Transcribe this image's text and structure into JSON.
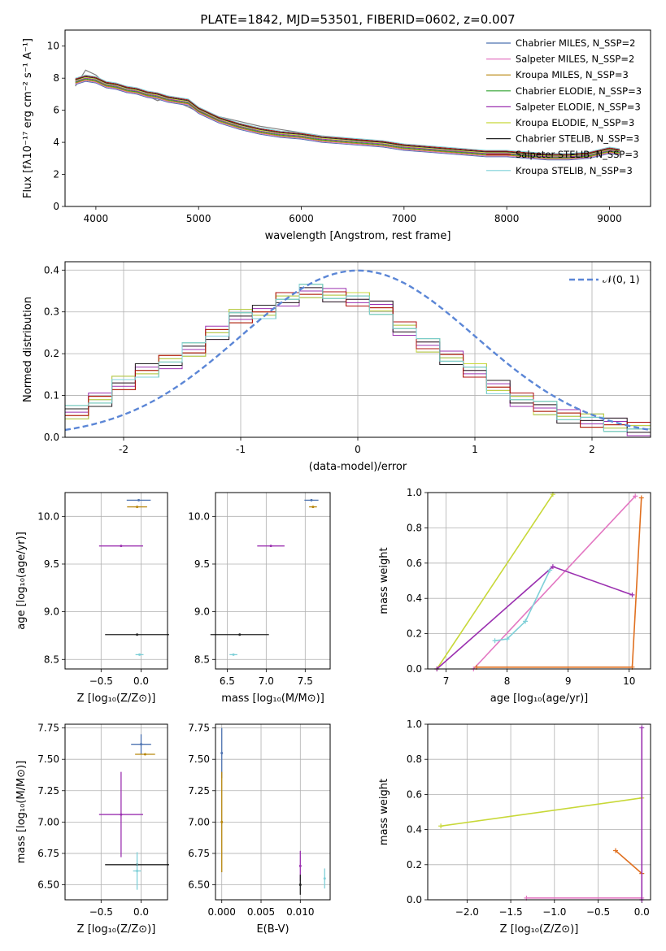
{
  "title": "PLATE=1842, MJD=53501, FIBERID=0602, z=0.007",
  "colors": [
    "#4c72b0",
    "#e377c2",
    "#b8860b",
    "#2ca02c",
    "#9b30b0",
    "#c8d838",
    "#222222",
    "#b01010",
    "#7fd0d8"
  ],
  "chart_data": [
    {
      "type": "line",
      "xlabel": "wavelength [Angstrom, rest frame]",
      "ylabel": "Flux [fλ10⁻¹⁷ erg cm⁻² s⁻¹ A⁻¹]",
      "xlim": [
        3700,
        9400
      ],
      "ylim": [
        0,
        11
      ],
      "xticks": [
        4000,
        5000,
        6000,
        7000,
        8000,
        9000
      ],
      "yticks": [
        0,
        2,
        4,
        6,
        8,
        10
      ],
      "grid": false,
      "legend_position": "top-right",
      "legend": [
        "Chabrier MILES, N_SSP=2",
        "Salpeter MILES, N_SSP=2",
        "Kroupa MILES, N_SSP=3",
        "Chabrier ELODIE, N_SSP=3",
        "Salpeter ELODIE, N_SSP=3",
        "Kroupa ELODIE, N_SSP=3",
        "Chabrier STELIB, N_SSP=3",
        "Salpeter STELIB, N_SSP=3",
        "Kroupa STELIB, N_SSP=3"
      ],
      "data_series": {
        "name": "data",
        "x": [
          3800,
          3900,
          4000,
          4100,
          4200,
          4300,
          4400,
          4500,
          4600,
          4700,
          4800,
          4900,
          5000,
          5200,
          5400,
          5600,
          5800,
          6000,
          6200,
          6400,
          6600,
          6800,
          7000,
          7200,
          7400,
          7600,
          7800,
          8000,
          8200,
          8400,
          8600,
          8800,
          9000,
          9100
        ],
        "y": [
          7.5,
          8.5,
          8.2,
          7.6,
          7.4,
          7.1,
          7.2,
          6.9,
          6.6,
          6.8,
          6.5,
          6.2,
          5.9,
          5.6,
          5.3,
          5.0,
          4.8,
          4.6,
          4.4,
          4.3,
          4.1,
          4.0,
          3.8,
          3.6,
          3.5,
          3.4,
          3.3,
          3.3,
          3.2,
          3.1,
          3.1,
          3.2,
          3.5,
          3.5
        ]
      },
      "model_series": {
        "x": [
          3800,
          3900,
          4000,
          4100,
          4200,
          4300,
          4400,
          4500,
          4600,
          4700,
          4800,
          4900,
          5000,
          5200,
          5400,
          5600,
          5800,
          6000,
          6200,
          6400,
          6600,
          6800,
          7000,
          7200,
          7400,
          7600,
          7800,
          8000,
          8200,
          8400,
          8600,
          8800,
          9000,
          9100
        ],
        "y": [
          7.8,
          8.0,
          7.9,
          7.6,
          7.5,
          7.3,
          7.2,
          7.0,
          6.9,
          6.7,
          6.6,
          6.5,
          6.0,
          5.4,
          5.0,
          4.7,
          4.5,
          4.4,
          4.2,
          4.1,
          4.0,
          3.9,
          3.7,
          3.6,
          3.5,
          3.4,
          3.3,
          3.3,
          3.2,
          3.1,
          3.1,
          3.2,
          3.5,
          3.4
        ]
      }
    },
    {
      "type": "line",
      "xlabel": "(data-model)/error",
      "ylabel": "Normed distribution",
      "xlim": [
        -2.5,
        2.5
      ],
      "ylim": [
        0,
        0.42
      ],
      "xticks": [
        -2,
        -1,
        0,
        1,
        2
      ],
      "yticks": [
        0.0,
        0.1,
        0.2,
        0.3,
        0.4
      ],
      "grid": true,
      "legend_position": "top-right",
      "legend": [
        "𝒩(0, 1)"
      ],
      "histogram_edges": [
        -2.5,
        -2.3,
        -2.1,
        -1.9,
        -1.7,
        -1.5,
        -1.3,
        -1.1,
        -0.9,
        -0.7,
        -0.5,
        -0.3,
        -0.1,
        0.1,
        0.3,
        0.5,
        0.7,
        0.9,
        1.1,
        1.3,
        1.5,
        1.7,
        1.9,
        2.1,
        2.3,
        2.5
      ],
      "histogram_values": [
        0.06,
        0.09,
        0.13,
        0.16,
        0.18,
        0.21,
        0.25,
        0.29,
        0.3,
        0.33,
        0.35,
        0.34,
        0.33,
        0.31,
        0.26,
        0.22,
        0.19,
        0.16,
        0.12,
        0.09,
        0.07,
        0.05,
        0.04,
        0.03,
        0.02
      ]
    },
    {
      "type": "scatter",
      "xlabel": "Z [log₁₀(Z/Z⊙)]",
      "ylabel": "age  [log₁₀(age/yr)]",
      "xlim": [
        -0.95,
        0.33
      ],
      "ylim": [
        8.4,
        10.25
      ],
      "xticks": [
        -0.5,
        0.0
      ],
      "xticklabels": [
        "−0.5",
        "0.0"
      ],
      "yticks": [
        8.5,
        9.0,
        9.5,
        10.0
      ],
      "yticklabels": [
        "8.5",
        "9.0",
        "9.5",
        "10.0"
      ],
      "grid": true,
      "points": [
        {
          "x": -0.03,
          "y": 10.17,
          "xerr": 0.3,
          "yerr": 0.0
        },
        {
          "x": -0.05,
          "y": 10.1,
          "xerr": 0.25,
          "yerr": 0.0
        },
        {
          "x": -0.25,
          "y": 9.69,
          "xerr": 0.55,
          "yerr": 0.0
        },
        {
          "x": -0.05,
          "y": 8.76,
          "xerr": 0.8,
          "yerr": 0.0
        },
        {
          "x": -0.02,
          "y": 8.55,
          "xerr": 0.1,
          "yerr": 0.0
        }
      ]
    },
    {
      "type": "scatter",
      "xlabel": "mass [log₁₀(M/M⊙)]",
      "ylabel": "",
      "xlim": [
        6.35,
        7.82
      ],
      "ylim": [
        8.4,
        10.25
      ],
      "xticks": [
        6.5,
        7.0,
        7.5
      ],
      "xticklabels": [
        "6.5",
        "7.0",
        "7.5"
      ],
      "yticks": [
        8.5,
        9.0,
        9.5,
        10.0
      ],
      "yticklabels": [
        "8.5",
        "9.0",
        "9.5",
        "10.0"
      ],
      "grid": true,
      "points": [
        {
          "x": 7.58,
          "y": 10.17,
          "xerr": 0.18,
          "yerr": 0.0
        },
        {
          "x": 7.6,
          "y": 10.1,
          "xerr": 0.1,
          "yerr": 0.0
        },
        {
          "x": 7.06,
          "y": 9.69,
          "xerr": 0.35,
          "yerr": 0.0
        },
        {
          "x": 6.66,
          "y": 8.76,
          "xerr": 0.75,
          "yerr": 0.0
        },
        {
          "x": 6.58,
          "y": 8.55,
          "xerr": 0.1,
          "yerr": 0.0
        }
      ]
    },
    {
      "type": "line",
      "xlabel": "age  [log₁₀(age/yr)]",
      "ylabel": "mass weight",
      "xlim": [
        6.7,
        10.35
      ],
      "ylim": [
        0,
        1
      ],
      "xticks": [
        7,
        8,
        9,
        10
      ],
      "xticklabels": [
        "7",
        "8",
        "9",
        "10"
      ],
      "yticks": [
        0.0,
        0.2,
        0.4,
        0.6,
        0.8,
        1.0
      ],
      "yticklabels": [
        "0.0",
        "0.2",
        "0.4",
        "0.6",
        "0.8",
        "1.0"
      ],
      "grid": true,
      "series": [
        {
          "x": [
            6.85,
            8.75
          ],
          "y": [
            0.0,
            0.99
          ]
        },
        {
          "x": [
            7.45,
            10.1
          ],
          "y": [
            0.0,
            0.98
          ]
        },
        {
          "x": [
            7.5,
            10.05,
            10.2
          ],
          "y": [
            0.01,
            0.01,
            0.97
          ]
        },
        {
          "x": [
            6.85,
            8.75,
            10.05
          ],
          "y": [
            0.0,
            0.58,
            0.42
          ]
        },
        {
          "x": [
            7.8,
            8.0,
            8.3,
            8.7
          ],
          "y": [
            0.16,
            0.17,
            0.27,
            0.56
          ]
        }
      ]
    },
    {
      "type": "scatter",
      "xlabel": "Z [log₁₀(Z/Z⊙)]",
      "ylabel": "mass [log₁₀(M/M⊙)]",
      "xlim": [
        -0.95,
        0.33
      ],
      "ylim": [
        6.38,
        7.78
      ],
      "xticks": [
        -0.5,
        0.0
      ],
      "xticklabels": [
        "−0.5",
        "0.0"
      ],
      "yticks": [
        6.5,
        6.75,
        7.0,
        7.25,
        7.5,
        7.75
      ],
      "yticklabels": [
        "6.50",
        "6.75",
        "7.00",
        "7.25",
        "7.50",
        "7.75"
      ],
      "grid": true,
      "points": [
        {
          "x": 0.0,
          "y": 7.62,
          "xerr": 0.25,
          "yerr": 0.08
        },
        {
          "x": 0.05,
          "y": 7.54,
          "xerr": 0.25,
          "yerr": 0.0
        },
        {
          "x": -0.25,
          "y": 7.06,
          "xerr": 0.55,
          "yerr": 0.34
        },
        {
          "x": -0.05,
          "y": 6.66,
          "xerr": 0.8,
          "yerr": 0.0
        },
        {
          "x": -0.05,
          "y": 6.61,
          "xerr": 0.1,
          "yerr": 0.15
        }
      ]
    },
    {
      "type": "scatter",
      "xlabel": "E(B-V)",
      "ylabel": "",
      "xlim": [
        -0.0008,
        0.0138
      ],
      "ylim": [
        6.38,
        7.78
      ],
      "xticks": [
        0.0,
        0.005,
        0.01
      ],
      "xticklabels": [
        "0.000",
        "0.005",
        "0.010"
      ],
      "yticks": [
        6.5,
        6.75,
        7.0,
        7.25,
        7.5,
        7.75
      ],
      "yticklabels": [
        "6.50",
        "6.75",
        "7.00",
        "7.25",
        "7.50",
        "7.75"
      ],
      "grid": true,
      "points": [
        {
          "x": 0.0,
          "y": 7.55,
          "xerr": 0.0,
          "yerr": 0.2
        },
        {
          "x": 0.0,
          "y": 7.0,
          "xerr": 0.0,
          "yerr": 0.4
        },
        {
          "x": 0.01,
          "y": 6.65,
          "xerr": 0.0,
          "yerr": 0.12
        },
        {
          "x": 0.01,
          "y": 6.5,
          "xerr": 0.0,
          "yerr": 0.08
        },
        {
          "x": 0.0131,
          "y": 6.55,
          "xerr": 0.0,
          "yerr": 0.08
        }
      ]
    },
    {
      "type": "line",
      "xlabel": "Z [log₁₀(Z/Z⊙)]",
      "ylabel": "mass weight",
      "xlim": [
        -2.45,
        0.1
      ],
      "ylim": [
        0,
        1
      ],
      "xticks": [
        -2.0,
        -1.5,
        -1.0,
        -0.5,
        0.0
      ],
      "xticklabels": [
        "−2.0",
        "−1.5",
        "−1.0",
        "−0.5",
        "0.0"
      ],
      "yticks": [
        0.0,
        0.2,
        0.4,
        0.6,
        0.8,
        1.0
      ],
      "yticklabels": [
        "0.0",
        "0.2",
        "0.4",
        "0.6",
        "0.8",
        "1.0"
      ],
      "grid": true,
      "series": [
        {
          "x": [
            -2.3,
            0.0
          ],
          "y": [
            0.42,
            0.58
          ]
        },
        {
          "x": [
            -1.32,
            0.0
          ],
          "y": [
            0.01,
            0.01
          ]
        },
        {
          "x": [
            -0.3,
            0.0
          ],
          "y": [
            0.28,
            0.15
          ]
        },
        {
          "x": [
            0.0,
            0.0
          ],
          "y": [
            0.0,
            0.98
          ]
        }
      ]
    }
  ]
}
